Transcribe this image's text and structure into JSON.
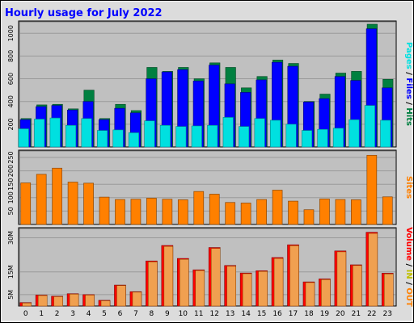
{
  "title": "Hourly usage for July 2022",
  "colors": {
    "page_bg": "#dcdcdc",
    "plot_bg": "#c0c0c0",
    "title": "#0000ff",
    "hits": "#008040",
    "files": "#0000ff",
    "pages": "#00e0e0",
    "sites": "#ff8000",
    "volume": "#ff0000",
    "in": "#c0c000",
    "out": "#ff8000",
    "axis_text": "#000000"
  },
  "chart_data": [
    {
      "type": "bar",
      "name": "hits-files-pages",
      "categories": [
        "0",
        "1",
        "2",
        "3",
        "4",
        "5",
        "6",
        "7",
        "8",
        "9",
        "10",
        "11",
        "12",
        "13",
        "14",
        "15",
        "16",
        "17",
        "18",
        "19",
        "20",
        "21",
        "22",
        "23"
      ],
      "ylim": [
        0,
        1080
      ],
      "yticks": [
        200,
        400,
        600,
        800,
        1000
      ],
      "ytick_labels": [
        "200",
        "400",
        "600",
        "800",
        "1000"
      ],
      "legend_parts": [
        {
          "key": "pages",
          "text": "Pages"
        },
        {
          "key": "slash1",
          "text": " / "
        },
        {
          "key": "files",
          "text": "Files"
        },
        {
          "key": "slash2",
          "text": " / "
        },
        {
          "key": "hits",
          "text": "Hits"
        }
      ],
      "legend_placement": "right",
      "series": [
        {
          "name": "Hits",
          "values": [
            250,
            370,
            375,
            335,
            500,
            250,
            375,
            320,
            700,
            665,
            700,
            600,
            740,
            700,
            520,
            620,
            765,
            735,
            400,
            465,
            650,
            665,
            1080,
            595
          ]
        },
        {
          "name": "Files",
          "values": [
            240,
            355,
            365,
            325,
            400,
            240,
            340,
            300,
            600,
            660,
            680,
            580,
            720,
            555,
            480,
            590,
            745,
            710,
            395,
            425,
            620,
            585,
            1040,
            520
          ]
        },
        {
          "name": "Pages",
          "values": [
            160,
            245,
            255,
            190,
            250,
            145,
            150,
            125,
            230,
            190,
            180,
            185,
            190,
            260,
            180,
            250,
            235,
            200,
            145,
            155,
            165,
            240,
            365,
            235
          ]
        }
      ]
    },
    {
      "type": "bar",
      "name": "sites",
      "categories": [
        "0",
        "1",
        "2",
        "3",
        "4",
        "5",
        "6",
        "7",
        "8",
        "9",
        "10",
        "11",
        "12",
        "13",
        "14",
        "15",
        "16",
        "17",
        "18",
        "19",
        "20",
        "21",
        "22",
        "23"
      ],
      "ylim": [
        0,
        265
      ],
      "yticks": [
        50,
        100,
        150,
        200,
        250
      ],
      "ytick_labels": [
        "50",
        "100",
        "150",
        "200",
        "250"
      ],
      "legend_parts": [
        {
          "key": "sites",
          "text": "Sites"
        }
      ],
      "legend_placement": "right",
      "series": [
        {
          "name": "Sites",
          "values": [
            155,
            187,
            210,
            158,
            154,
            102,
            93,
            94,
            98,
            94,
            92,
            123,
            113,
            82,
            80,
            93,
            128,
            87,
            55,
            95,
            93,
            92,
            258,
            103
          ]
        }
      ]
    },
    {
      "type": "bar",
      "name": "volume",
      "categories": [
        "0",
        "1",
        "2",
        "3",
        "4",
        "5",
        "6",
        "7",
        "8",
        "9",
        "10",
        "11",
        "12",
        "13",
        "14",
        "15",
        "16",
        "17",
        "18",
        "19",
        "20",
        "21",
        "22",
        "23"
      ],
      "ylim": [
        0,
        33
      ],
      "yticks": [
        5,
        15,
        30
      ],
      "ytick_labels": [
        "5M",
        "15M",
        "30M"
      ],
      "legend_parts": [
        {
          "key": "volume",
          "text": "Volume"
        },
        {
          "key": "slash1",
          "text": " / "
        },
        {
          "key": "in",
          "text": "IN"
        },
        {
          "key": "slash2",
          "text": " / "
        },
        {
          "key": "out",
          "text": "OUT"
        }
      ],
      "legend_placement": "right",
      "series": [
        {
          "name": "Volume",
          "values": [
            1.5,
            4.8,
            4.3,
            5.4,
            5.0,
            2.5,
            9.2,
            6.3,
            19.8,
            26.6,
            20.9,
            15.9,
            25.7,
            17.8,
            14.5,
            15.5,
            21.3,
            26.9,
            10.6,
            11.9,
            24.2,
            18.1,
            32.4,
            14.4
          ]
        },
        {
          "name": "OUT",
          "values": [
            1.3,
            4.6,
            4.1,
            5.2,
            4.8,
            2.3,
            9.0,
            6.1,
            19.4,
            26.2,
            20.5,
            15.6,
            25.3,
            17.5,
            14.2,
            15.2,
            20.9,
            26.5,
            10.3,
            11.6,
            23.8,
            17.8,
            31.9,
            14.1
          ]
        }
      ]
    }
  ]
}
